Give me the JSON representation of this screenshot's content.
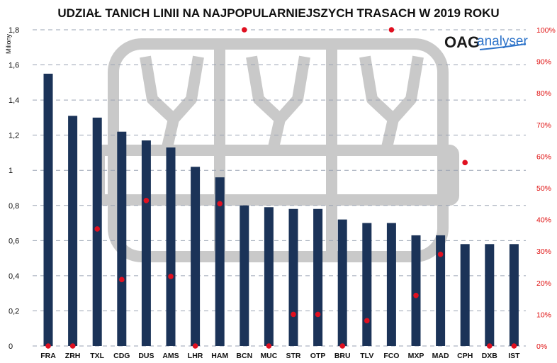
{
  "chart_data": {
    "type": "bar",
    "title": "UDZIAŁ TANICH LINII NA NAJPOPULARNIEJSZYCH TRASACH W 2019 ROKU",
    "ylabel": "Miliony",
    "ylim": [
      0,
      1.8
    ],
    "yticks": [
      "0",
      "0,2",
      "0,4",
      "0,6",
      "0,8",
      "1",
      "1,2",
      "1,4",
      "1,6",
      "1,8"
    ],
    "y2lim": [
      0,
      100
    ],
    "y2ticks": [
      "0%",
      "10%",
      "20%",
      "30%",
      "40%",
      "50%",
      "60%",
      "70%",
      "80%",
      "90%",
      "100%"
    ],
    "grid": true,
    "categories": [
      "FRA",
      "ZRH",
      "TXL",
      "CDG",
      "DUS",
      "AMS",
      "LHR",
      "HAM",
      "BCN",
      "MUC",
      "STR",
      "OTP",
      "BRU",
      "TLV",
      "FCO",
      "MXP",
      "MAD",
      "CPH",
      "DXB",
      "IST"
    ],
    "series": [
      {
        "axis": "left",
        "kind": "bar",
        "color": "#1b3358",
        "values": [
          1.55,
          1.31,
          1.3,
          1.22,
          1.17,
          1.13,
          1.02,
          0.96,
          0.8,
          0.79,
          0.78,
          0.78,
          0.72,
          0.7,
          0.7,
          0.63,
          0.63,
          0.58,
          0.58,
          0.58
        ]
      },
      {
        "axis": "right",
        "kind": "scatter",
        "color": "#e01020",
        "unit": "%",
        "values": [
          0,
          0,
          37,
          21,
          46,
          22,
          0,
          45,
          100,
          0,
          10,
          10,
          0,
          8,
          100,
          16,
          29,
          58,
          0,
          0
        ]
      }
    ]
  },
  "logo": {
    "main": "OAG",
    "sub": "analyser"
  },
  "colors": {
    "bars": "#1b3358",
    "points": "#e01020",
    "grid": "#9aa3b3",
    "watermark": "#c8c8c8"
  }
}
